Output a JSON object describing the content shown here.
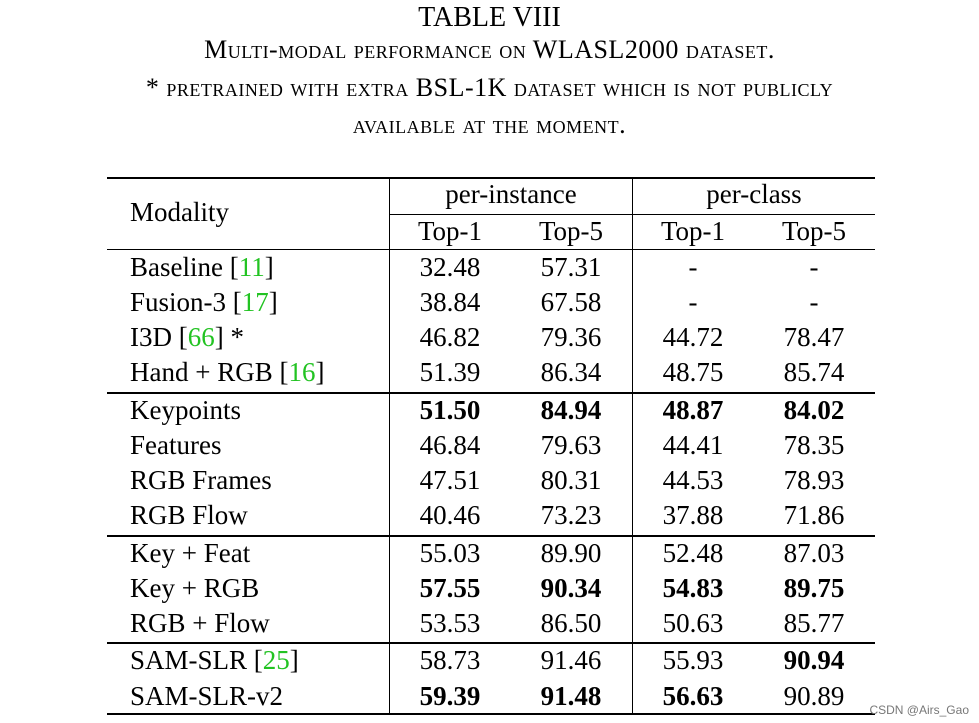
{
  "caption": {
    "label": "TABLE VIII",
    "line1": "Multi-modal performance on WLASL2000 dataset.",
    "line2": "* pretrained with extra BSL-1K dataset which is not publicly",
    "line3": "available at the moment."
  },
  "header": {
    "modality": "Modality",
    "group1": "per-instance",
    "group2": "per-class",
    "sub": [
      "Top-1",
      "Top-5",
      "Top-1",
      "Top-5"
    ]
  },
  "sections": [
    {
      "rows": [
        {
          "name": "Baseline",
          "ref": "11",
          "suffix": "",
          "values": [
            "32.48",
            "57.31",
            "-",
            "-"
          ],
          "bold": [
            false,
            false,
            false,
            false
          ]
        },
        {
          "name": "Fusion-3",
          "ref": "17",
          "suffix": "",
          "values": [
            "38.84",
            "67.58",
            "-",
            "-"
          ],
          "bold": [
            false,
            false,
            false,
            false
          ]
        },
        {
          "name": "I3D",
          "ref": "66",
          "suffix": " *",
          "values": [
            "46.82",
            "79.36",
            "44.72",
            "78.47"
          ],
          "bold": [
            false,
            false,
            false,
            false
          ]
        },
        {
          "name": "Hand + RGB",
          "ref": "16",
          "suffix": "",
          "values": [
            "51.39",
            "86.34",
            "48.75",
            "85.74"
          ],
          "bold": [
            false,
            false,
            false,
            false
          ]
        }
      ]
    },
    {
      "rows": [
        {
          "name": "Keypoints",
          "ref": "",
          "suffix": "",
          "values": [
            "51.50",
            "84.94",
            "48.87",
            "84.02"
          ],
          "bold": [
            true,
            true,
            true,
            true
          ]
        },
        {
          "name": "Features",
          "ref": "",
          "suffix": "",
          "values": [
            "46.84",
            "79.63",
            "44.41",
            "78.35"
          ],
          "bold": [
            false,
            false,
            false,
            false
          ]
        },
        {
          "name": "RGB Frames",
          "ref": "",
          "suffix": "",
          "values": [
            "47.51",
            "80.31",
            "44.53",
            "78.93"
          ],
          "bold": [
            false,
            false,
            false,
            false
          ]
        },
        {
          "name": "RGB Flow",
          "ref": "",
          "suffix": "",
          "values": [
            "40.46",
            "73.23",
            "37.88",
            "71.86"
          ],
          "bold": [
            false,
            false,
            false,
            false
          ]
        }
      ]
    },
    {
      "rows": [
        {
          "name": "Key + Feat",
          "ref": "",
          "suffix": "",
          "values": [
            "55.03",
            "89.90",
            "52.48",
            "87.03"
          ],
          "bold": [
            false,
            false,
            false,
            false
          ]
        },
        {
          "name": "Key + RGB",
          "ref": "",
          "suffix": "",
          "values": [
            "57.55",
            "90.34",
            "54.83",
            "89.75"
          ],
          "bold": [
            true,
            true,
            true,
            true
          ]
        },
        {
          "name": "RGB + Flow",
          "ref": "",
          "suffix": "",
          "values": [
            "53.53",
            "86.50",
            "50.63",
            "85.77"
          ],
          "bold": [
            false,
            false,
            false,
            false
          ]
        }
      ]
    },
    {
      "rows": [
        {
          "name": "SAM-SLR",
          "ref": "25",
          "suffix": "",
          "values": [
            "58.73",
            "91.46",
            "55.93",
            "90.94"
          ],
          "bold": [
            false,
            false,
            false,
            true
          ]
        },
        {
          "name": "SAM-SLR-v2",
          "ref": "",
          "suffix": "",
          "values": [
            "59.39",
            "91.48",
            "56.63",
            "90.89"
          ],
          "bold": [
            true,
            true,
            true,
            false
          ]
        }
      ]
    }
  ],
  "watermark": "CSDN @Airs_Gao",
  "colors": {
    "ref_link": "#22c322"
  }
}
